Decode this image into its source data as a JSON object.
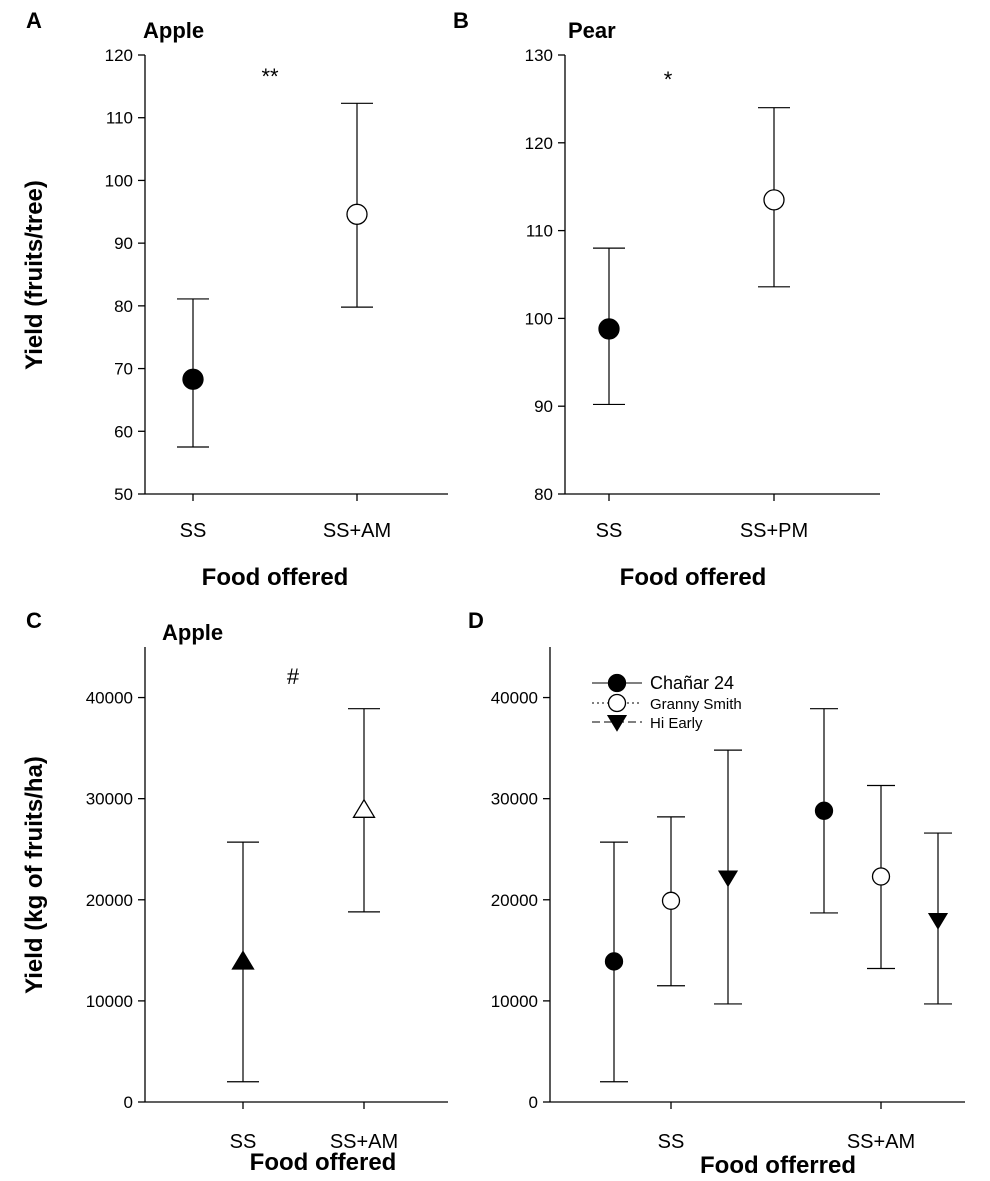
{
  "chart_data": [
    {
      "panel": "A",
      "type": "scatter",
      "title": "Apple",
      "xlabel": "Food offered",
      "ylabel": "Yield (fruits/tree)",
      "ylim": [
        50,
        120
      ],
      "yticks": [
        50,
        60,
        70,
        80,
        90,
        100,
        110,
        120
      ],
      "categories": [
        "SS",
        "SS+AM"
      ],
      "annotation": "**",
      "points": [
        {
          "category": "SS",
          "value": 68.3,
          "err_low": 57.5,
          "err_high": 81.1,
          "marker": "circle",
          "fill": "#000000"
        },
        {
          "category": "SS+AM",
          "value": 94.6,
          "err_low": 79.8,
          "err_high": 112.3,
          "marker": "circle",
          "fill": "#ffffff"
        }
      ]
    },
    {
      "panel": "B",
      "type": "scatter",
      "title": "Pear",
      "xlabel": "Food offered",
      "ylabel": "",
      "ylim": [
        80,
        130
      ],
      "yticks": [
        80,
        90,
        100,
        110,
        120,
        130
      ],
      "categories": [
        "SS",
        "SS+PM"
      ],
      "annotation": "*",
      "points": [
        {
          "category": "SS",
          "value": 98.8,
          "err_low": 90.2,
          "err_high": 108.0,
          "marker": "circle",
          "fill": "#000000"
        },
        {
          "category": "SS+PM",
          "value": 113.5,
          "err_low": 103.6,
          "err_high": 124.0,
          "marker": "circle",
          "fill": "#ffffff"
        }
      ]
    },
    {
      "panel": "C",
      "type": "scatter",
      "title": "Apple",
      "xlabel": "Food offered",
      "ylabel": "Yield (kg of fruits/ha)",
      "ylim": [
        0,
        45000
      ],
      "yticks": [
        0,
        10000,
        20000,
        30000,
        40000
      ],
      "categories": [
        "SS",
        "SS+AM"
      ],
      "annotation": "#",
      "points": [
        {
          "category": "SS",
          "value": 13900,
          "err_low": 2000,
          "err_high": 25700,
          "marker": "triangle-up",
          "fill": "#000000"
        },
        {
          "category": "SS+AM",
          "value": 28900,
          "err_low": 18800,
          "err_high": 38900,
          "marker": "triangle-up",
          "fill": "#ffffff"
        }
      ]
    },
    {
      "panel": "D",
      "type": "scatter",
      "title": "",
      "xlabel": "Food offerred",
      "ylabel": "",
      "ylim": [
        0,
        45000
      ],
      "yticks": [
        0,
        10000,
        20000,
        30000,
        40000
      ],
      "categories": [
        "SS",
        "SS+AM"
      ],
      "legend_position": "top-left",
      "series": [
        {
          "name": "Chañar 24",
          "marker": "circle",
          "fill": "#000000",
          "line": "solid",
          "values": [
            13900,
            28800
          ],
          "err_low": [
            2000,
            18700
          ],
          "err_high": [
            25700,
            38900
          ]
        },
        {
          "name": "Granny Smith",
          "marker": "circle",
          "fill": "#ffffff",
          "line": "dotted",
          "values": [
            19900,
            22300
          ],
          "err_low": [
            11500,
            13200
          ],
          "err_high": [
            28200,
            31300
          ]
        },
        {
          "name": "Hi Early",
          "marker": "triangle-down",
          "fill": "#000000",
          "line": "dashed",
          "values": [
            22200,
            18000
          ],
          "err_low": [
            9700,
            9700
          ],
          "err_high": [
            34800,
            26600
          ]
        }
      ]
    }
  ]
}
